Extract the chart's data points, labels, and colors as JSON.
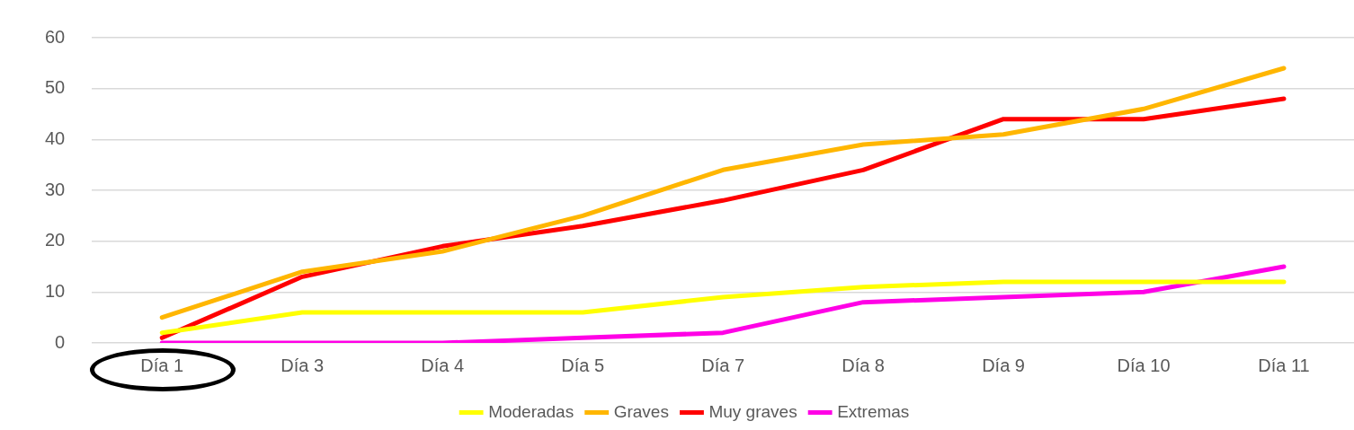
{
  "chart_data": {
    "type": "line",
    "categories": [
      "Día 1",
      "Día 3",
      "Día 4",
      "Día 5",
      "Día 7",
      "Día 8",
      "Día 9",
      "Día 10",
      "Día 11"
    ],
    "series": [
      {
        "name": "Moderadas",
        "color": "#ffff00",
        "values": [
          2,
          6,
          6,
          6,
          9,
          11,
          12,
          12,
          12
        ]
      },
      {
        "name": "Graves",
        "color": "#ffb600",
        "values": [
          5,
          14,
          18,
          25,
          34,
          39,
          41,
          46,
          54
        ]
      },
      {
        "name": "Muy graves",
        "color": "#ff0000",
        "values": [
          1,
          13,
          19,
          23,
          28,
          34,
          44,
          44,
          48
        ]
      },
      {
        "name": "Extremas",
        "color": "#ff00e6",
        "values": [
          0,
          0,
          0,
          1,
          2,
          8,
          9,
          10,
          15
        ]
      }
    ],
    "ylim": [
      0,
      60
    ],
    "yticks": [
      0,
      10,
      20,
      30,
      40,
      50,
      60
    ],
    "grid": "y",
    "legend": "bottom",
    "marker": "none",
    "line_style": "solid"
  }
}
